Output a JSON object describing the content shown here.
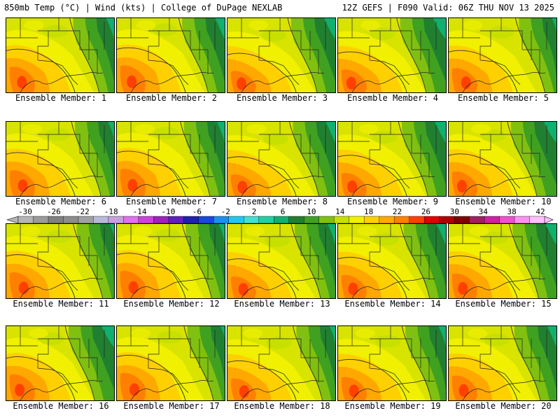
{
  "header": {
    "left": "850mb Temp (°C) | Wind (kts) | College of DuPage NEXLAB",
    "right": "12Z GEFS | F090 Valid: 06Z THU NOV 13 2025"
  },
  "panels": [
    {
      "label": "Ensemble Member: 1"
    },
    {
      "label": "Ensemble Member: 2"
    },
    {
      "label": "Ensemble Member: 3"
    },
    {
      "label": "Ensemble Member: 4"
    },
    {
      "label": "Ensemble Member: 5"
    },
    {
      "label": "Ensemble Member: 6"
    },
    {
      "label": "Ensemble Member: 7"
    },
    {
      "label": "Ensemble Member: 8"
    },
    {
      "label": "Ensemble Member: 9"
    },
    {
      "label": "Ensemble Member: 10"
    },
    {
      "label": "Ensemble Member: 11"
    },
    {
      "label": "Ensemble Member: 12"
    },
    {
      "label": "Ensemble Member: 13"
    },
    {
      "label": "Ensemble Member: 14"
    },
    {
      "label": "Ensemble Member: 15"
    },
    {
      "label": "Ensemble Member: 16"
    },
    {
      "label": "Ensemble Member: 17"
    },
    {
      "label": "Ensemble Member: 18"
    },
    {
      "label": "Ensemble Member: 19"
    },
    {
      "label": "Ensemble Member: 20"
    }
  ],
  "colorbar": {
    "labels": [
      "-30",
      "-26",
      "-22",
      "-18",
      "-14",
      "-10",
      "-6",
      "-2",
      "2",
      "6",
      "10",
      "14",
      "18",
      "22",
      "26",
      "30",
      "34",
      "38",
      "42"
    ],
    "colors": [
      "#b4b4b4",
      "#9a9a9a",
      "#808080",
      "#8c8c8c",
      "#a0a0a0",
      "#b8b8d8",
      "#c8a0e0",
      "#e070f0",
      "#d040e0",
      "#a020c0",
      "#6020c0",
      "#2020b0",
      "#1848e0",
      "#1890f0",
      "#20c8f0",
      "#40e0d0",
      "#20d0a0",
      "#10b070",
      "#208030",
      "#40a020",
      "#80c010",
      "#c8e000",
      "#f0f000",
      "#ffd000",
      "#ffa800",
      "#ff8000",
      "#ff4000",
      "#e00000",
      "#b00000",
      "#800000",
      "#a02060",
      "#d020a0",
      "#f050d0",
      "#ff90f0",
      "#ffc0ff"
    ]
  }
}
